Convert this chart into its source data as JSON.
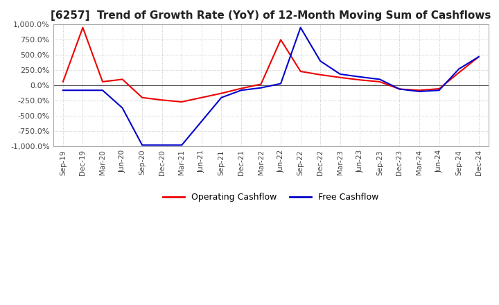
{
  "title": "[6257]  Trend of Growth Rate (YoY) of 12-Month Moving Sum of Cashflows",
  "title_fontsize": 11,
  "ylim": [
    -1000,
    1000
  ],
  "yticks": [
    -1000,
    -750,
    -500,
    -250,
    0,
    250,
    500,
    750,
    1000
  ],
  "background_color": "#ffffff",
  "plot_bg_color": "#ffffff",
  "grid_color": "#aaaaaa",
  "x_labels": [
    "Sep-19",
    "Dec-19",
    "Mar-20",
    "Jun-20",
    "Sep-20",
    "Dec-20",
    "Mar-21",
    "Jun-21",
    "Sep-21",
    "Dec-21",
    "Mar-22",
    "Jun-22",
    "Sep-22",
    "Dec-22",
    "Mar-23",
    "Jun-23",
    "Sep-23",
    "Dec-23",
    "Mar-24",
    "Jun-24",
    "Sep-24",
    "Dec-24"
  ],
  "operating_color": "#ee0000",
  "free_color": "#0000cc",
  "legend_labels": [
    "Operating Cashflow",
    "Free Cashflow"
  ],
  "operating_data": [
    60,
    950,
    60,
    100,
    -200,
    -240,
    -270,
    -200,
    -130,
    -50,
    20,
    750,
    230,
    175,
    130,
    90,
    60,
    -60,
    -80,
    -55,
    210,
    470
  ],
  "free_data": [
    -80,
    -80,
    -80,
    -370,
    -980,
    -980,
    -980,
    -590,
    -200,
    -80,
    -40,
    30,
    950,
    400,
    185,
    140,
    100,
    -60,
    -100,
    -80,
    270,
    470
  ]
}
